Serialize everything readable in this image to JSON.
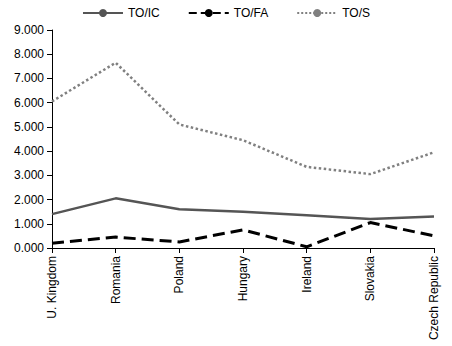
{
  "chart_data": {
    "type": "line",
    "categories": [
      "U. Kingdom",
      "Romania",
      "Poland",
      "Hungary",
      "Ireland",
      "Slovakia",
      "Czech Republic"
    ],
    "series": [
      {
        "name": "TO/IC",
        "color": "#555555",
        "line_style": "solid",
        "values": [
          1.4,
          2.05,
          1.6,
          1.5,
          1.35,
          1.2,
          1.3
        ]
      },
      {
        "name": "TO/FA",
        "color": "#000000",
        "line_style": "dashed",
        "values": [
          0.2,
          0.45,
          0.25,
          0.75,
          0.05,
          1.05,
          0.5
        ]
      },
      {
        "name": "TO/S",
        "color": "#808080",
        "line_style": "dotted",
        "values": [
          6.05,
          7.65,
          5.1,
          4.45,
          3.35,
          3.05,
          3.95
        ]
      }
    ],
    "ylim": [
      0,
      9
    ],
    "yticks": [
      {
        "value": 0,
        "label": "0.000"
      },
      {
        "value": 1,
        "label": "1.000"
      },
      {
        "value": 2,
        "label": "2.000"
      },
      {
        "value": 3,
        "label": "3.000"
      },
      {
        "value": 4,
        "label": "4.000"
      },
      {
        "value": 5,
        "label": "5.000"
      },
      {
        "value": 6,
        "label": "6.000"
      },
      {
        "value": 7,
        "label": "7.000"
      },
      {
        "value": 8,
        "label": "8.000"
      },
      {
        "value": 9,
        "label": "9.000"
      }
    ],
    "grid": false,
    "legend": "top"
  }
}
